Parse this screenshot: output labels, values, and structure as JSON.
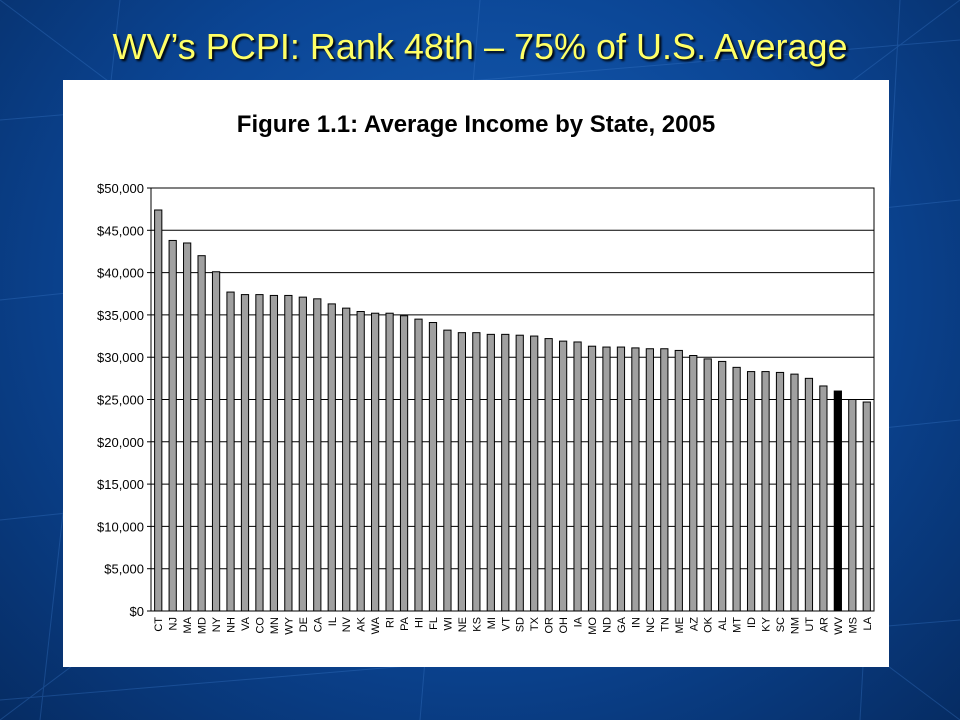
{
  "slide": {
    "title": "WV’s PCPI: Rank 48th – 75% of U.S. Average"
  },
  "colors": {
    "title": "#ffff66",
    "bar": "#a0a0a0",
    "highlight_bar": "#000000",
    "background": "#0b4594"
  },
  "chart_data": {
    "type": "bar",
    "title": "Figure 1.1: Average Income by State, 2005",
    "xlabel": "",
    "ylabel": "",
    "ylim": [
      0,
      50000
    ],
    "y_ticks": [
      "$0",
      "$5,000",
      "$10,000",
      "$15,000",
      "$20,000",
      "$25,000",
      "$30,000",
      "$35,000",
      "$40,000",
      "$45,000",
      "$50,000"
    ],
    "grid": true,
    "highlight": "WV",
    "categories": [
      "CT",
      "NJ",
      "MA",
      "MD",
      "NY",
      "NH",
      "VA",
      "CO",
      "MN",
      "WY",
      "DE",
      "CA",
      "IL",
      "NV",
      "AK",
      "WA",
      "RI",
      "PA",
      "HI",
      "FL",
      "WI",
      "NE",
      "KS",
      "MI",
      "VT",
      "SD",
      "TX",
      "OR",
      "OH",
      "IA",
      "MO",
      "ND",
      "GA",
      "IN",
      "NC",
      "TN",
      "ME",
      "AZ",
      "OK",
      "AL",
      "MT",
      "ID",
      "KY",
      "SC",
      "NM",
      "UT",
      "AR",
      "WV",
      "MS",
      "LA"
    ],
    "values": [
      47400,
      43800,
      43500,
      42000,
      40100,
      37700,
      37400,
      37400,
      37300,
      37300,
      37100,
      36900,
      36300,
      35800,
      35400,
      35200,
      35200,
      34900,
      34500,
      34100,
      33200,
      32900,
      32900,
      32700,
      32700,
      32600,
      32500,
      32200,
      31900,
      31800,
      31300,
      31200,
      31200,
      31100,
      31000,
      31000,
      30800,
      30200,
      29800,
      29500,
      28800,
      28300,
      28300,
      28200,
      28000,
      27500,
      26600,
      26000,
      25000,
      24700
    ]
  }
}
